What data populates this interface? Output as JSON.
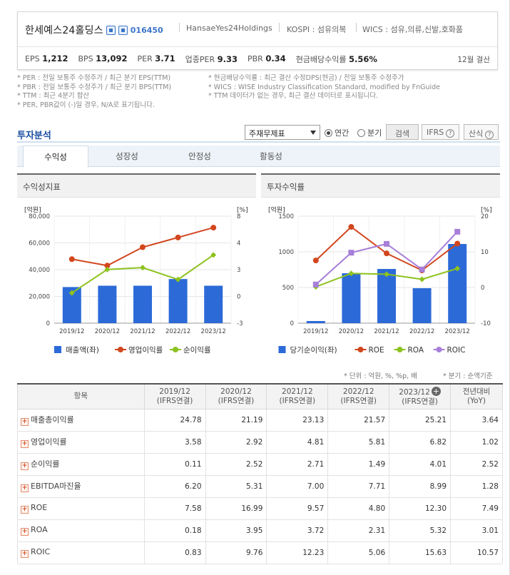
{
  "company": {
    "name": "한세예스24홀딩스",
    "code": "016450",
    "english_name": "HansaeYes24Holdings",
    "market": "KOSPI : 섬유의복",
    "wics": "WICS : 섬유,의류,신발,호화품",
    "fiscal": "12월 결산"
  },
  "stats": [
    {
      "label": "EPS",
      "value": "1,212"
    },
    {
      "label": "BPS",
      "value": "13,092"
    },
    {
      "label": "PER",
      "value": "3.71"
    },
    {
      "label": "업종PER",
      "value": "9.33"
    },
    {
      "label": "PBR",
      "value": "0.34"
    },
    {
      "label": "현금배당수익률",
      "value": "5.56%"
    }
  ],
  "notes_left": [
    "* PER : 전일 보통주 수정주가 / 최근 분기 EPS(TTM)",
    "* PBR : 전일 보통주 수정주가 / 최근 분기 BPS(TTM)",
    "* TTM : 최근 4분기 합산",
    "* PER, PBR값이 (-)일 경우, N/A로 표기됩니다."
  ],
  "notes_right": [
    "* 현금배당수익률 : 최근 결산 수정DPS(현금) / 전일 보통주 수정주가",
    "* WICS : WISE Industry Classification Standard, modified by FnGuide",
    "* TTM 데이터가 없는 경우, 최근 결산 데이터로 표시됩니다."
  ],
  "section": {
    "title": "투자분석",
    "select_value": "주재무제표",
    "radio_annual": "연간",
    "radio_quarter": "분기",
    "search_button": "검색",
    "ifrs_button": "IFRS",
    "formula_button": "산식"
  },
  "tabs": [
    "수익성",
    "성장성",
    "안정성",
    "활동성"
  ],
  "charts": {
    "left_title": "수익성지표",
    "right_title": "투자수익률"
  },
  "chart_data": [
    {
      "type": "bar",
      "title": "수익성지표",
      "categories": [
        "2019/12",
        "2020/12",
        "2021/12",
        "2022/12",
        "2023/12"
      ],
      "left_axis_unit": "[억원]",
      "right_axis_unit": "[%]",
      "left_ticks": [
        "80,000",
        "60,000",
        "40,000",
        "20,000",
        "0"
      ],
      "right_ticks": [
        "8",
        "4",
        "3",
        "0",
        "-3"
      ],
      "ylim_left": [
        0,
        80000
      ],
      "ylim_right": [
        -3,
        8
      ],
      "series": [
        {
          "name": "매출액(좌)",
          "kind": "bar",
          "axis": "left",
          "color": "#2c6ad8",
          "values": [
            27000,
            28000,
            28000,
            33000,
            28000
          ]
        },
        {
          "name": "영업이익률",
          "kind": "line",
          "axis": "right",
          "color": "#d2461e",
          "values": [
            3.58,
            2.92,
            4.81,
            5.81,
            6.82
          ]
        },
        {
          "name": "순이익률",
          "kind": "line",
          "axis": "right",
          "color": "#8dc21f",
          "values": [
            0.11,
            2.52,
            2.71,
            1.49,
            4.01
          ]
        }
      ]
    },
    {
      "type": "bar",
      "title": "투자수익률",
      "categories": [
        "2019/12",
        "2020/12",
        "2021/12",
        "2022/12",
        "2023/12"
      ],
      "left_axis_unit": "[억원]",
      "right_axis_unit": "[%]",
      "left_ticks": [
        "1500",
        "1000",
        "500",
        "0"
      ],
      "right_ticks": [
        "20",
        "10",
        "0",
        "-10"
      ],
      "ylim_left": [
        0,
        1500
      ],
      "ylim_right": [
        -10,
        20
      ],
      "series": [
        {
          "name": "당기순이익(좌)",
          "kind": "bar",
          "axis": "left",
          "color": "#2c6ad8",
          "values": [
            30,
            700,
            760,
            490,
            1110
          ]
        },
        {
          "name": "ROE",
          "kind": "line",
          "axis": "right",
          "color": "#d2461e",
          "values": [
            7.58,
            16.99,
            9.57,
            4.8,
            12.3
          ]
        },
        {
          "name": "ROA",
          "kind": "line",
          "axis": "right",
          "color": "#8dc21f",
          "values": [
            0.18,
            3.95,
            3.72,
            2.31,
            5.32
          ]
        },
        {
          "name": "ROIC",
          "kind": "line",
          "axis": "right",
          "color": "#a77ed8",
          "values": [
            0.83,
            9.76,
            12.23,
            5.06,
            15.63
          ]
        }
      ]
    }
  ],
  "table": {
    "unit_note": "* 단위 : 억원, %, %p, 배",
    "period_note": "* 분기 : 순액기준",
    "header": {
      "item": "항목",
      "cols": [
        {
          "year": "2019/12",
          "basis": "(IFRS연결)"
        },
        {
          "year": "2020/12",
          "basis": "(IFRS연결)"
        },
        {
          "year": "2021/12",
          "basis": "(IFRS연결)"
        },
        {
          "year": "2022/12",
          "basis": "(IFRS연결)"
        },
        {
          "year": "2023/12",
          "basis": "(IFRS연결)"
        }
      ],
      "yoy": "전년대비",
      "yoy_sub": "(YoY)"
    },
    "rows": [
      {
        "label": "매출총이익률",
        "values": [
          "24.78",
          "21.19",
          "23.13",
          "21.57",
          "25.21"
        ],
        "yoy": "3.64"
      },
      {
        "label": "영업이익률",
        "values": [
          "3.58",
          "2.92",
          "4.81",
          "5.81",
          "6.82"
        ],
        "yoy": "1.02"
      },
      {
        "label": "순이익률",
        "values": [
          "0.11",
          "2.52",
          "2.71",
          "1.49",
          "4.01"
        ],
        "yoy": "2.52"
      },
      {
        "label": "EBITDA마진율",
        "values": [
          "6.20",
          "5.31",
          "7.00",
          "7.71",
          "8.99"
        ],
        "yoy": "1.28"
      },
      {
        "label": "ROE",
        "values": [
          "7.58",
          "16.99",
          "9.57",
          "4.80",
          "12.30"
        ],
        "yoy": "7.49"
      },
      {
        "label": "ROA",
        "values": [
          "0.18",
          "3.95",
          "3.72",
          "2.31",
          "5.32"
        ],
        "yoy": "3.01"
      },
      {
        "label": "ROIC",
        "values": [
          "0.83",
          "9.76",
          "12.23",
          "5.06",
          "15.63"
        ],
        "yoy": "10.57"
      }
    ]
  }
}
